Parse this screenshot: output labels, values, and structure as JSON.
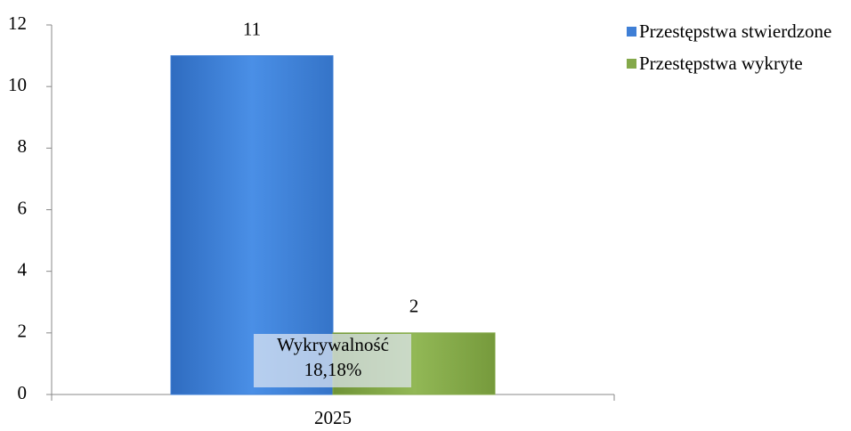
{
  "chart_data": {
    "type": "bar",
    "categories": [
      "2025"
    ],
    "series": [
      {
        "name": "Przestępstwa stwierdzone",
        "color": "#3f7fd6",
        "values": [
          11
        ]
      },
      {
        "name": "Przestępstwa wykryte",
        "color": "#84a94a",
        "values": [
          2
        ]
      }
    ],
    "ylim": [
      0,
      12
    ],
    "yticks": [
      0,
      2,
      4,
      6,
      8,
      10,
      12
    ],
    "annotation": [
      "Wykrywalność",
      "18,18%"
    ],
    "legend": "right"
  }
}
